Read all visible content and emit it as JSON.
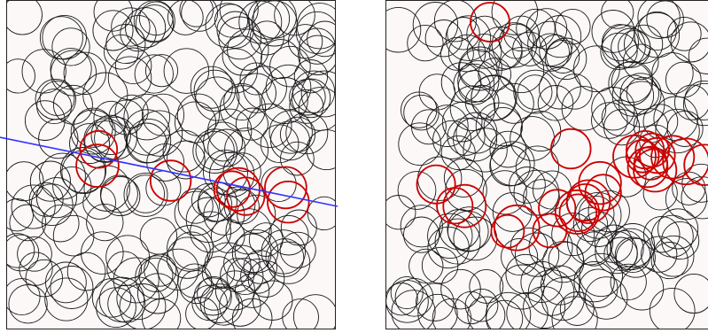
{
  "colors": {
    "background": "#fcf8f8",
    "frame": "#222222",
    "circle": "#1a1a1a",
    "highlight": "#cc0000",
    "line": "#3333ff"
  },
  "panels": [
    {
      "name": "panel-left",
      "circle_count": 220,
      "highlight": "band-along-line",
      "show_line": true
    },
    {
      "name": "panel-right",
      "circle_count": 220,
      "highlight": "curved-arc",
      "show_line": false
    }
  ]
}
